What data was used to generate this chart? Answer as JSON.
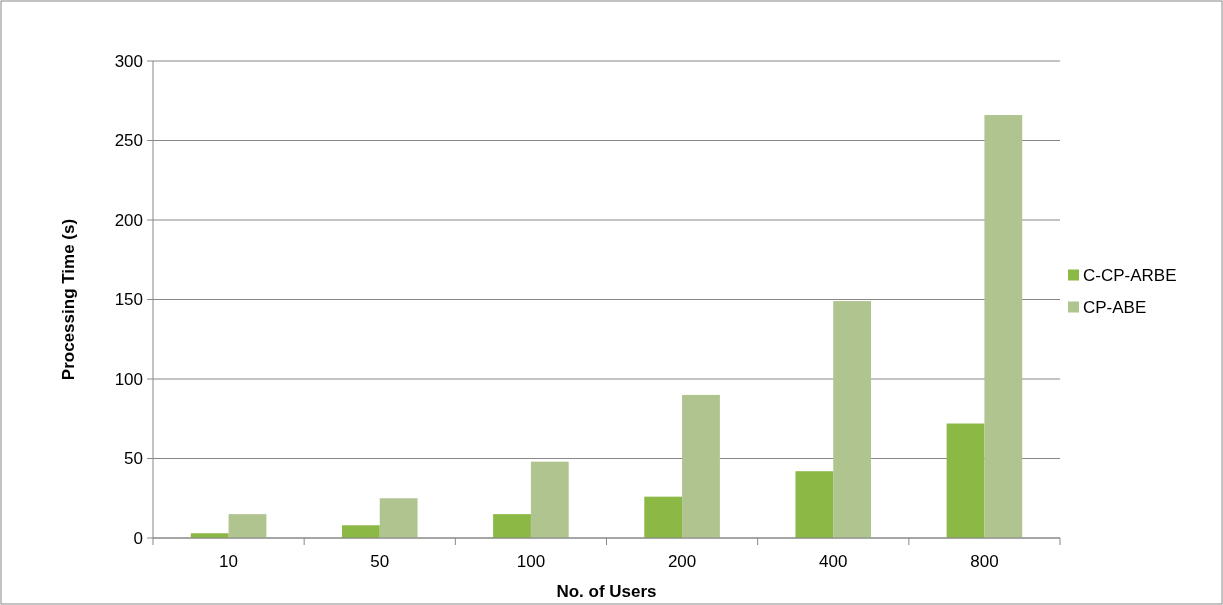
{
  "chart_data": {
    "type": "bar",
    "xlabel": "No. of Users",
    "ylabel": "Processing Time (s)",
    "categories": [
      "10",
      "50",
      "100",
      "200",
      "400",
      "800"
    ],
    "series": [
      {
        "name": "C-CP-ARBE",
        "color": "#8cb845",
        "values": [
          3,
          8,
          15,
          26,
          42,
          72
        ]
      },
      {
        "name": "CP-ABE",
        "color": "#afc48f",
        "values": [
          15,
          25,
          48,
          90,
          149,
          266
        ]
      }
    ],
    "ylim": [
      0,
      300
    ],
    "yticks": [
      0,
      50,
      100,
      150,
      200,
      250,
      300
    ],
    "grid": "y",
    "legend": "right"
  }
}
